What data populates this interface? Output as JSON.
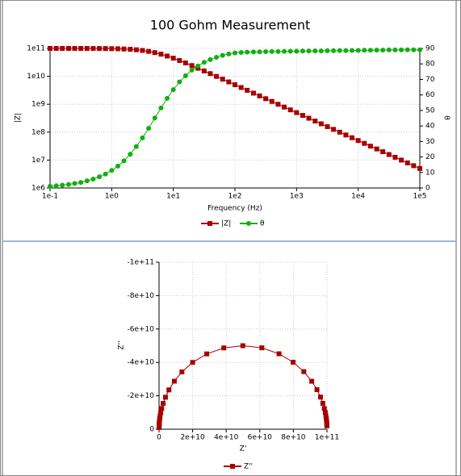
{
  "chart_data": [
    {
      "type": "line",
      "title": "100 Gohm Measurement",
      "x_label": "Frequency (Hz)",
      "y_label": "|Z|",
      "y2_label": "θ",
      "xlog": true,
      "ylog": true,
      "grid": true,
      "legend": "bottom",
      "x": [
        0.1,
        0.126,
        0.158,
        0.2,
        0.251,
        0.316,
        0.398,
        0.501,
        0.631,
        0.794,
        1,
        1.26,
        1.58,
        2,
        2.51,
        3.16,
        3.98,
        5.01,
        6.31,
        7.94,
        10,
        12.6,
        15.8,
        20,
        25.1,
        31.6,
        39.8,
        50.1,
        63.1,
        79.4,
        100,
        126,
        158,
        200,
        251,
        316,
        398,
        501,
        631,
        794,
        1000,
        1260,
        1580,
        2000,
        2510,
        3160,
        3980,
        5010,
        6310,
        7940,
        10000,
        12600,
        15800,
        20000,
        25100,
        31600,
        39800,
        50100,
        63100,
        79400,
        100000
      ],
      "xlim": [
        0.1,
        100000
      ],
      "xticks": [
        {
          "value": 0.1,
          "label": "1e-1"
        },
        {
          "value": 1,
          "label": "1e0"
        },
        {
          "value": 10,
          "label": "1e1"
        },
        {
          "value": 100,
          "label": "1e2"
        },
        {
          "value": 1000,
          "label": "1e3"
        },
        {
          "value": 10000,
          "label": "1e4"
        },
        {
          "value": 100000,
          "label": "1e5"
        }
      ],
      "ylim": [
        1000000,
        100000000000
      ],
      "yticks": [
        {
          "value": 1000000,
          "label": "1e6"
        },
        {
          "value": 10000000,
          "label": "1e7"
        },
        {
          "value": 100000000,
          "label": "1e8"
        },
        {
          "value": 1000000000,
          "label": "1e9"
        },
        {
          "value": 10000000000,
          "label": "1e10"
        },
        {
          "value": 100000000000,
          "label": "1e11"
        }
      ],
      "y2lim": [
        0,
        90
      ],
      "y2ticks": [
        0,
        10,
        20,
        30,
        40,
        50,
        60,
        70,
        80,
        90
      ],
      "series": [
        {
          "name": "|Z|",
          "color": "#a80000",
          "marker": "square",
          "values": [
            100000000000.0,
            100000000000.0,
            100000000000.0,
            99900000000.0,
            99900000000.0,
            99800000000.0,
            99700000000.0,
            99500000000.0,
            99200000000.0,
            98800000000.0,
            98100000000.0,
            97000000000.0,
            95400000000.0,
            92800000000.0,
            89400000000.0,
            84500000000.0,
            78200000000.0,
            70600000000.0,
            62100000000.0,
            53300000000.0,
            44700000000.0,
            36900000000.0,
            30200000000.0,
            24300000000.0,
            19500000000.0,
            15600000000.0,
            12500000000.0,
            9930000000.0,
            7920000000.0,
            6300000000.0,
            5000000000.0,
            3970000000.0,
            3160000000.0,
            2500000000.0,
            1990000000.0,
            1580000000.0,
            1260000000.0,
            998000000.0,
            792000000.0,
            630000000.0,
            500000000.0,
            397000000.0,
            316000000.0,
            250000000.0,
            199000000.0,
            158000000.0,
            126000000.0,
            99800000.0,
            79200000.0,
            63000000.0,
            50000000.0,
            39700000.0,
            31600000.0,
            25000000.0,
            19900000.0,
            15800000.0,
            12600000.0,
            9980000.0,
            7920000.0,
            6300000.0,
            5000000.0
          ]
        },
        {
          "name": "θ",
          "color": "#10b010",
          "marker": "circle",
          "axis": "y2",
          "values": [
            1.1,
            1.4,
            1.8,
            2.3,
            2.9,
            3.6,
            4.6,
            5.7,
            7.2,
            9.0,
            11.3,
            14.1,
            17.5,
            21.8,
            26.7,
            32.3,
            38.5,
            45.1,
            51.6,
            57.8,
            63.4,
            68.4,
            72.4,
            76.0,
            78.7,
            81.0,
            82.8,
            84.3,
            85.5,
            86.4,
            87.1,
            87.4,
            87.6,
            87.7,
            87.8,
            87.9,
            88.0,
            88.0,
            88.1,
            88.2,
            88.2,
            88.3,
            88.3,
            88.4,
            88.4,
            88.5,
            88.5,
            88.6,
            88.6,
            88.7,
            88.7,
            88.8,
            88.8,
            88.9,
            88.9,
            89.0,
            89.0,
            89.0,
            89.1,
            89.1,
            89.1
          ]
        }
      ]
    },
    {
      "type": "line",
      "x_label": "Z'",
      "y_label": "Z''",
      "grid": true,
      "legend": "bottom",
      "x": [
        99960000000.0,
        99940000000.0,
        99900000000.0,
        99840000000.0,
        99750000000.0,
        99600000000.0,
        99370000000.0,
        99010000000.0,
        98430000000.0,
        97540000000.0,
        96150000000.0,
        94030000000.0,
        90920000000.0,
        86210000000.0,
        79870000000.0,
        71460000000.0,
        61210000000.0,
        49900000000.0,
        38570000000.0,
        28400000000.0,
        20000000000.0,
        13610000000.0,
        9100000000.0,
        5880000000.0,
        3820000000.0,
        2440000000.0,
        1550000000.0,
        990000000.0,
        630000000.0,
        390000000.0,
        250000000.0,
        160000000.0,
        100000000.0,
        60000000.0,
        40000000.0,
        30000000.0,
        20000000.0,
        10000000.0
      ],
      "xlim": [
        0,
        100000000000
      ],
      "xticks": [
        0,
        {
          "value": 20000000000,
          "label": "2e+10"
        },
        {
          "value": 40000000000,
          "label": "4e+10"
        },
        {
          "value": 60000000000,
          "label": "6e+10"
        },
        {
          "value": 80000000000,
          "label": "8e+10"
        },
        {
          "value": 100000000000,
          "label": "1e+11"
        }
      ],
      "ylim": [
        0,
        -100000000000
      ],
      "yticks": [
        0,
        {
          "value": -20000000000,
          "label": "-2e+10"
        },
        {
          "value": -40000000000,
          "label": "-4e+10"
        },
        {
          "value": -60000000000,
          "label": "-6e+10"
        },
        {
          "value": -80000000000,
          "label": "-8e+10"
        },
        {
          "value": -100000000000,
          "label": "-1e+11"
        }
      ],
      "series": [
        {
          "name": "Z''",
          "color": "#a80000",
          "marker": "square",
          "values": [
            -2000000000.0,
            -2520000000.0,
            -3160000000.0,
            -3990000000.0,
            -5010000000.0,
            -6300000000.0,
            -7910000000.0,
            -9920000000.0,
            -12420000000.0,
            -15490000000.0,
            -19230000000.0,
            -23700000000.0,
            -28730000000.0,
            -34480000000.0,
            -40100000000.0,
            -45160000000.0,
            -48720000000.0,
            -50000000000.0,
            -48680000000.0,
            -45100000000.0,
            -40000000000.0,
            -34290000000.0,
            -28760000000.0,
            -23530000000.0,
            -19140000000.0,
            -15430000000.0,
            -12360000000.0,
            -9890000000.0,
            -7910000000.0,
            -6270000000.0,
            -4990000000.0,
            -3960000000.0,
            -3160000000.0,
            -2500000000.0,
            -1990000000.0,
            -1580000000.0,
            -1260000000.0,
            -1000000000.0
          ]
        }
      ]
    }
  ]
}
